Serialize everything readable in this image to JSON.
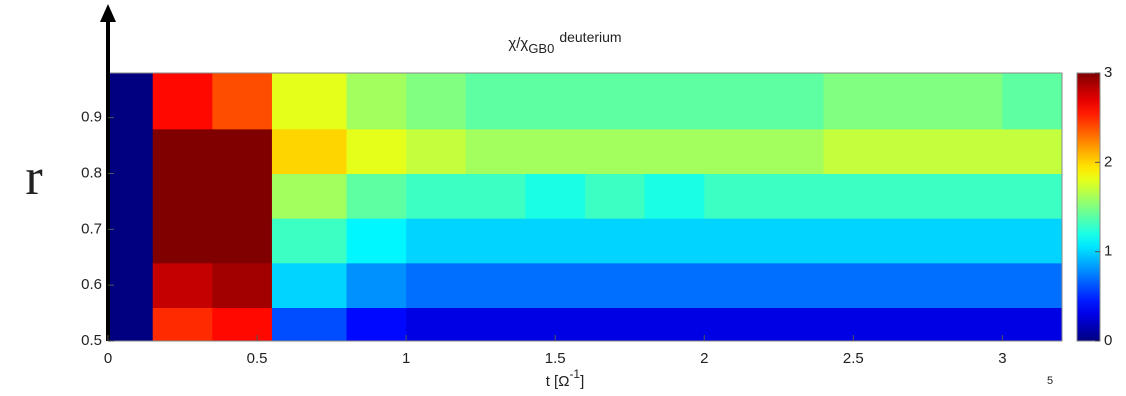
{
  "chart_data": {
    "type": "heatmap",
    "title": "χ/χ",
    "title_sub": "GB0",
    "title_tail": "deuterium",
    "x_label": "t [Ω",
    "x_label_sup": "-1",
    "x_label_tail": "]",
    "y_label": "r",
    "page_number": "5",
    "colormap": "jet",
    "x_edges": [
      0,
      0.15,
      0.35,
      0.55,
      0.8,
      1.0,
      1.2,
      1.4,
      1.6,
      1.8,
      2.0,
      2.2,
      2.4,
      2.6,
      2.8,
      3.0,
      3.2
    ],
    "y_edges": [
      0.5,
      0.56,
      0.64,
      0.72,
      0.8,
      0.88,
      0.98
    ],
    "z": [
      [
        0,
        2.5,
        2.6,
        0.6,
        0.4,
        0.3,
        0.3,
        0.3,
        0.3,
        0.3,
        0.3,
        0.3,
        0.3,
        0.3,
        0.3,
        0.3
      ],
      [
        0,
        2.8,
        2.9,
        1.0,
        0.8,
        0.7,
        0.7,
        0.7,
        0.7,
        0.7,
        0.7,
        0.7,
        0.7,
        0.7,
        0.7,
        0.7
      ],
      [
        0,
        3,
        3,
        1.3,
        1.1,
        1.0,
        1.0,
        1.0,
        1.0,
        1.0,
        1.0,
        1.0,
        1.0,
        1.0,
        1.0,
        1.0
      ],
      [
        0,
        3,
        3,
        1.6,
        1.4,
        1.3,
        1.3,
        1.2,
        1.3,
        1.2,
        1.3,
        1.3,
        1.3,
        1.3,
        1.3,
        1.3
      ],
      [
        0,
        3,
        3,
        2.0,
        1.8,
        1.7,
        1.6,
        1.6,
        1.6,
        1.6,
        1.6,
        1.6,
        1.7,
        1.7,
        1.7,
        1.7
      ],
      [
        0,
        2.6,
        2.4,
        1.8,
        1.6,
        1.5,
        1.4,
        1.4,
        1.4,
        1.4,
        1.4,
        1.4,
        1.5,
        1.5,
        1.5,
        1.4
      ]
    ],
    "xlim": [
      0,
      3.2
    ],
    "xticks": [
      0,
      0.5,
      1,
      1.5,
      2,
      2.5,
      3
    ],
    "ylim": [
      0.5,
      0.98
    ],
    "yticks": [
      0.5,
      0.6,
      0.7,
      0.8,
      0.9
    ],
    "clim": [
      0,
      3
    ],
    "cticks": [
      0,
      1,
      2,
      3
    ]
  }
}
